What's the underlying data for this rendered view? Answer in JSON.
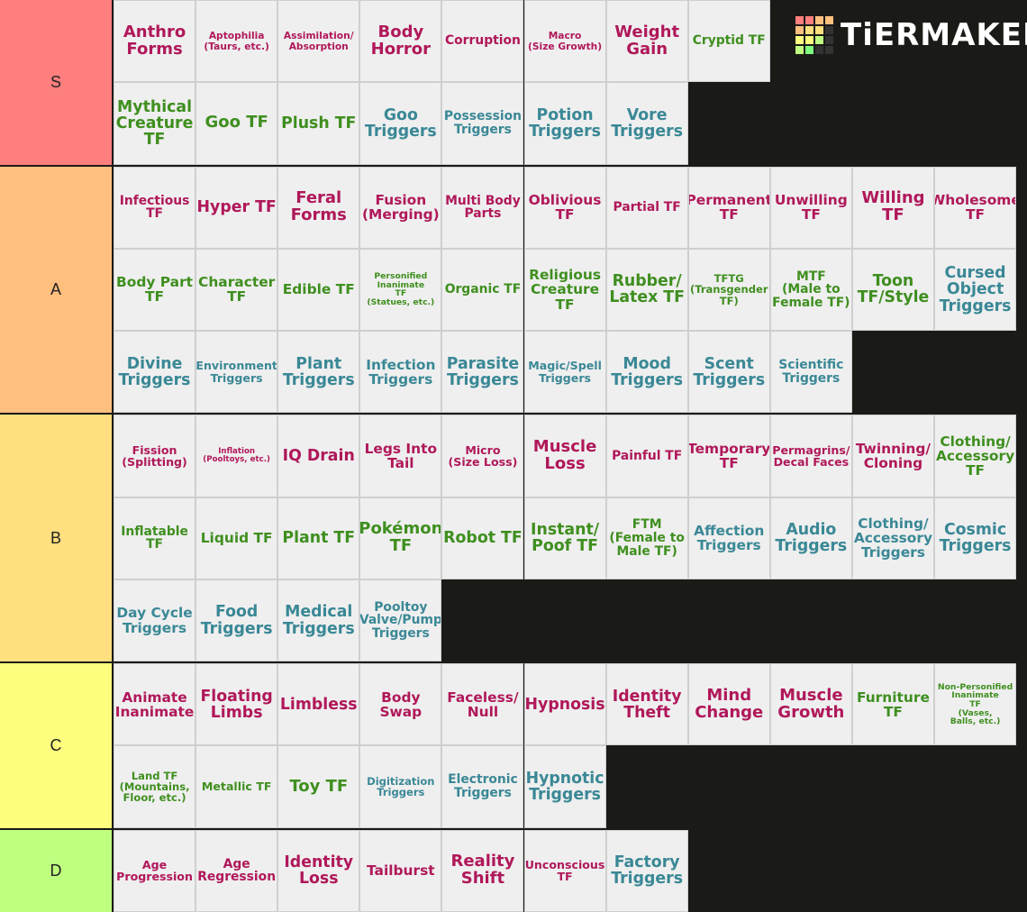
{
  "logo": "TiERMAKER",
  "tiers": [
    {
      "label": "S",
      "color": "#ff7f7f",
      "rows": [
        [
          {
            "text": "Anthro\nForms",
            "color": "#b0185a"
          },
          {
            "text": "Aptophilia\n(Taurs, etc.)",
            "color": "#b0185a"
          },
          {
            "text": "Assimilation/\nAbsorption",
            "color": "#b0185a"
          },
          {
            "text": "Body\nHorror",
            "color": "#b0185a"
          },
          {
            "text": "Corruption",
            "color": "#b0185a"
          },
          {
            "text": "Macro\n(Size Growth)",
            "color": "#b0185a"
          },
          {
            "text": "Weight\nGain",
            "color": "#b0185a"
          },
          {
            "text": "Cryptid TF",
            "color": "#3f8f1f"
          }
        ],
        [
          {
            "text": "Mythical\nCreature\nTF",
            "color": "#3f8f1f"
          },
          {
            "text": "Goo TF",
            "color": "#3f8f1f"
          },
          {
            "text": "Plush TF",
            "color": "#3f8f1f"
          },
          {
            "text": "Goo\nTriggers",
            "color": "#3a8896"
          },
          {
            "text": "Possession\nTriggers",
            "color": "#3a8896"
          },
          {
            "text": "Potion\nTriggers",
            "color": "#3a8896"
          },
          {
            "text": "Vore\nTriggers",
            "color": "#3a8896"
          }
        ]
      ]
    },
    {
      "label": "A",
      "color": "#ffbf7f",
      "rows": [
        [
          {
            "text": "Infectious\nTF",
            "color": "#b0185a"
          },
          {
            "text": "Hyper TF",
            "color": "#b0185a"
          },
          {
            "text": "Feral\nForms",
            "color": "#b0185a"
          },
          {
            "text": "Fusion\n(Merging)",
            "color": "#b0185a"
          },
          {
            "text": "Multi Body\nParts",
            "color": "#b0185a"
          },
          {
            "text": "Oblivious\nTF",
            "color": "#b0185a"
          },
          {
            "text": "Partial TF",
            "color": "#b0185a"
          },
          {
            "text": "Permanent\nTF",
            "color": "#b0185a"
          },
          {
            "text": "Unwilling\nTF",
            "color": "#b0185a"
          },
          {
            "text": "Willing\nTF",
            "color": "#b0185a"
          },
          {
            "text": "Wholesome\nTF",
            "color": "#b0185a"
          }
        ],
        [
          {
            "text": "Body Part\nTF",
            "color": "#3f8f1f"
          },
          {
            "text": "Character\nTF",
            "color": "#3f8f1f"
          },
          {
            "text": "Edible TF",
            "color": "#3f8f1f"
          },
          {
            "text": "Personified\nInanimate\nTF\n(Statues, etc.)",
            "color": "#3f8f1f"
          },
          {
            "text": "Organic TF",
            "color": "#3f8f1f"
          },
          {
            "text": "Religious\nCreature\nTF",
            "color": "#3f8f1f"
          },
          {
            "text": "Rubber/\nLatex TF",
            "color": "#3f8f1f"
          },
          {
            "text": "TFTG\n(Transgender\nTF)",
            "color": "#3f8f1f"
          },
          {
            "text": "MTF\n(Male to\nFemale TF)",
            "color": "#3f8f1f"
          },
          {
            "text": "Toon\nTF/Style",
            "color": "#3f8f1f"
          },
          {
            "text": "Cursed\nObject\nTriggers",
            "color": "#3a8896"
          }
        ],
        [
          {
            "text": "Divine\nTriggers",
            "color": "#3a8896"
          },
          {
            "text": "Environment\nTriggers",
            "color": "#3a8896"
          },
          {
            "text": "Plant\nTriggers",
            "color": "#3a8896"
          },
          {
            "text": "Infection\nTriggers",
            "color": "#3a8896"
          },
          {
            "text": "Parasite\nTriggers",
            "color": "#3a8896"
          },
          {
            "text": "Magic/Spell\nTriggers",
            "color": "#3a8896"
          },
          {
            "text": "Mood\nTriggers",
            "color": "#3a8896"
          },
          {
            "text": "Scent\nTriggers",
            "color": "#3a8896"
          },
          {
            "text": "Scientific\nTriggers",
            "color": "#3a8896"
          }
        ]
      ]
    },
    {
      "label": "B",
      "color": "#ffdf7f",
      "rows": [
        [
          {
            "text": "Fission\n(Splitting)",
            "color": "#b0185a"
          },
          {
            "text": "Inflation\n(Pooltoys, etc.)",
            "color": "#b0185a"
          },
          {
            "text": "IQ Drain",
            "color": "#b0185a"
          },
          {
            "text": "Legs Into\nTail",
            "color": "#b0185a"
          },
          {
            "text": "Micro\n(Size Loss)",
            "color": "#b0185a"
          },
          {
            "text": "Muscle\nLoss",
            "color": "#b0185a"
          },
          {
            "text": "Painful TF",
            "color": "#b0185a"
          },
          {
            "text": "Temporary\nTF",
            "color": "#b0185a"
          },
          {
            "text": "Permagrins/\nDecal Faces",
            "color": "#b0185a"
          },
          {
            "text": "Twinning/\nCloning",
            "color": "#b0185a"
          },
          {
            "text": "Clothing/\nAccessory\nTF",
            "color": "#3f8f1f"
          }
        ],
        [
          {
            "text": "Inflatable\nTF",
            "color": "#3f8f1f"
          },
          {
            "text": "Liquid TF",
            "color": "#3f8f1f"
          },
          {
            "text": "Plant TF",
            "color": "#3f8f1f"
          },
          {
            "text": "Pokémon\nTF",
            "color": "#3f8f1f"
          },
          {
            "text": "Robot TF",
            "color": "#3f8f1f"
          },
          {
            "text": "Instant/\nPoof TF",
            "color": "#3f8f1f"
          },
          {
            "text": "FTM\n(Female to\nMale TF)",
            "color": "#3f8f1f"
          },
          {
            "text": "Affection\nTriggers",
            "color": "#3a8896"
          },
          {
            "text": "Audio\nTriggers",
            "color": "#3a8896"
          },
          {
            "text": "Clothing/\nAccessory\nTriggers",
            "color": "#3a8896"
          },
          {
            "text": "Cosmic\nTriggers",
            "color": "#3a8896"
          }
        ],
        [
          {
            "text": "Day Cycle\nTriggers",
            "color": "#3a8896"
          },
          {
            "text": "Food\nTriggers",
            "color": "#3a8896"
          },
          {
            "text": "Medical\nTriggers",
            "color": "#3a8896"
          },
          {
            "text": "Pooltoy\nValve/Pump\nTriggers",
            "color": "#3a8896"
          }
        ]
      ]
    },
    {
      "label": "C",
      "color": "#ffff7f",
      "rows": [
        [
          {
            "text": "Animate\nInanimate",
            "color": "#b0185a"
          },
          {
            "text": "Floating\nLimbs",
            "color": "#b0185a"
          },
          {
            "text": "Limbless",
            "color": "#b0185a"
          },
          {
            "text": "Body Swap",
            "color": "#b0185a"
          },
          {
            "text": "Faceless/\nNull",
            "color": "#b0185a"
          },
          {
            "text": "Hypnosis",
            "color": "#b0185a"
          },
          {
            "text": "Identity\nTheft",
            "color": "#b0185a"
          },
          {
            "text": "Mind\nChange",
            "color": "#b0185a"
          },
          {
            "text": "Muscle\nGrowth",
            "color": "#b0185a"
          },
          {
            "text": "Furniture\nTF",
            "color": "#3f8f1f"
          },
          {
            "text": "Non-Personified\nInanimate\nTF\n(Vases,\nBalls, etc.)",
            "color": "#3f8f1f"
          }
        ],
        [
          {
            "text": "Land TF\n(Mountains,\nFloor, etc.)",
            "color": "#3f8f1f"
          },
          {
            "text": "Metallic TF",
            "color": "#3f8f1f"
          },
          {
            "text": "Toy TF",
            "color": "#3f8f1f"
          },
          {
            "text": "Digitization\nTriggers",
            "color": "#3a8896"
          },
          {
            "text": "Electronic\nTriggers",
            "color": "#3a8896"
          },
          {
            "text": "Hypnotic\nTriggers",
            "color": "#3a8896"
          }
        ]
      ]
    },
    {
      "label": "D",
      "color": "#bfff7f",
      "rows": [
        [
          {
            "text": "Age\nProgression",
            "color": "#b0185a"
          },
          {
            "text": "Age\nRegression",
            "color": "#b0185a"
          },
          {
            "text": "Identity\nLoss",
            "color": "#b0185a"
          },
          {
            "text": "Tailburst",
            "color": "#b0185a"
          },
          {
            "text": "Reality\nShift",
            "color": "#b0185a"
          },
          {
            "text": "Unconscious\nTF",
            "color": "#b0185a"
          },
          {
            "text": "Factory\nTriggers",
            "color": "#3a8896"
          }
        ]
      ]
    }
  ]
}
